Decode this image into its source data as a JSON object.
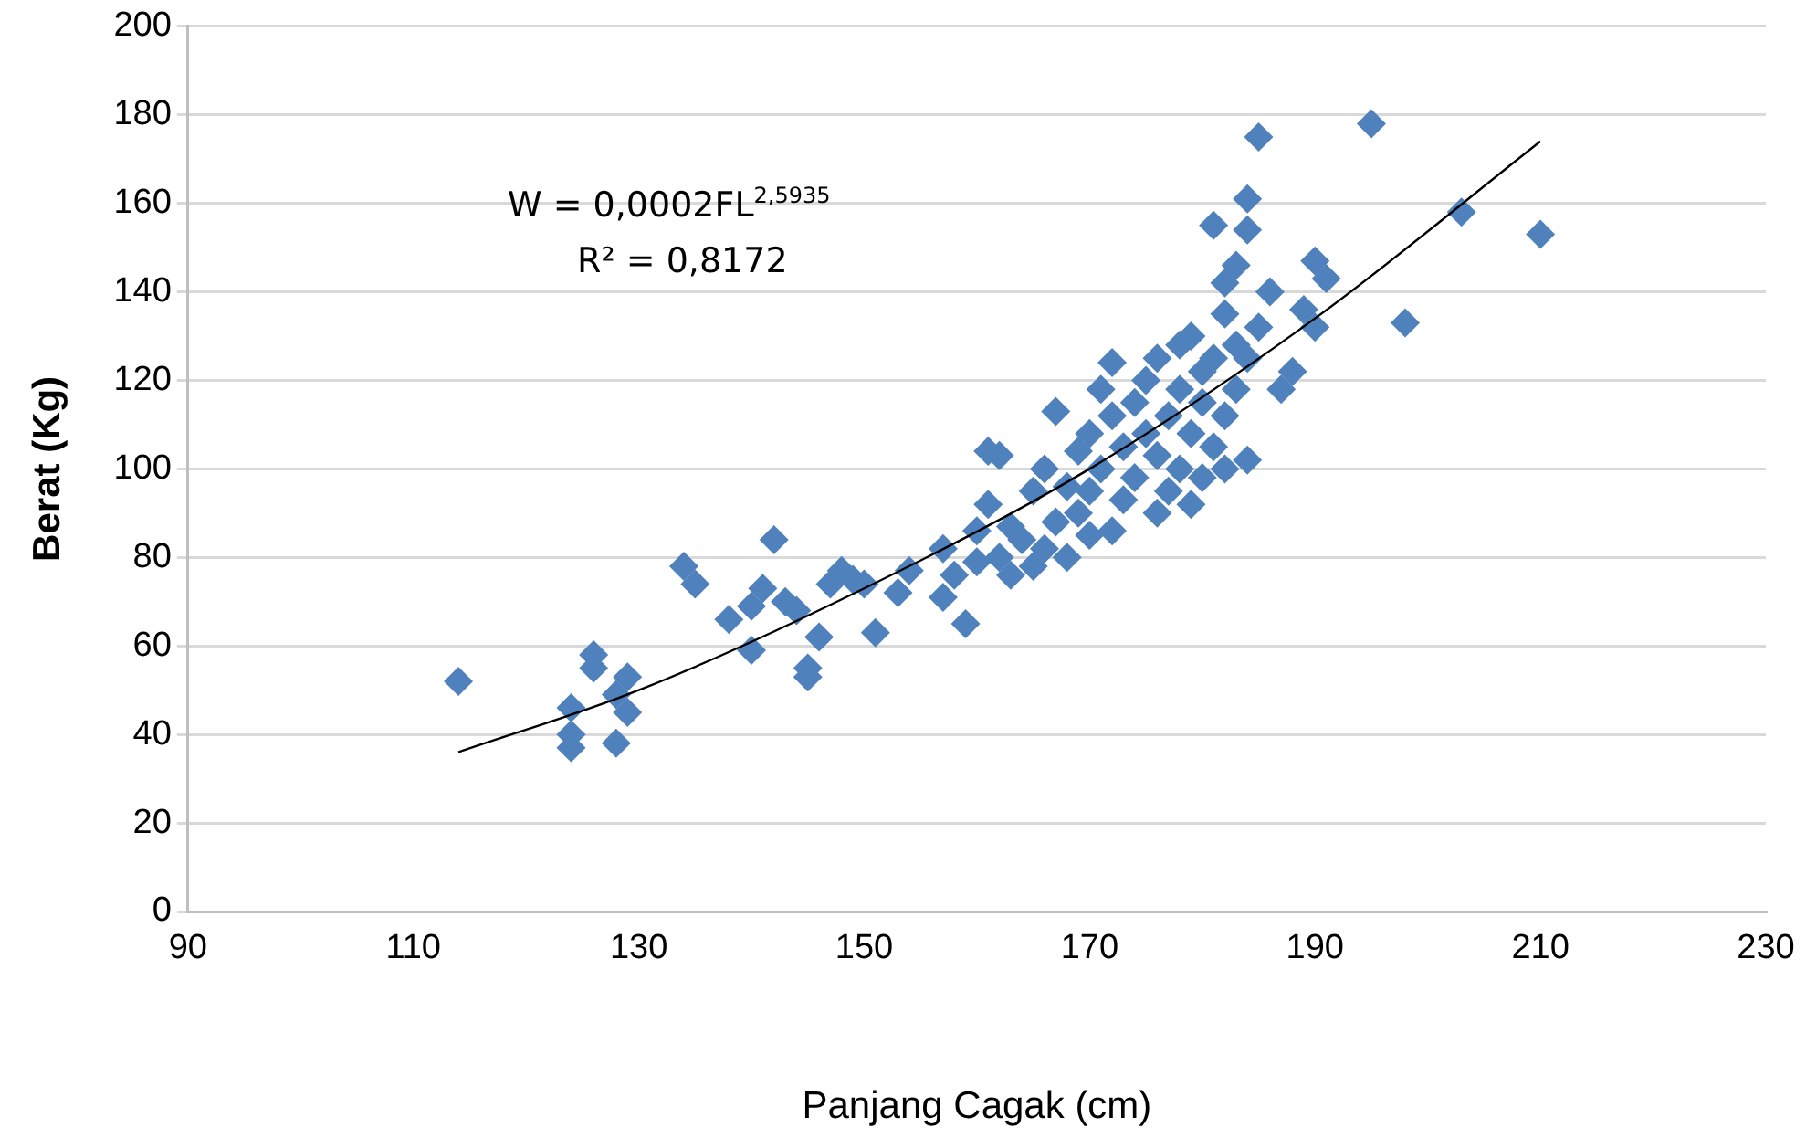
{
  "chart_data": {
    "type": "scatter",
    "xlabel": "Panjang Cagak (cm)",
    "ylabel": "Berat (Kg)",
    "annotations": [
      "W = 0,0002FL$^{2,5935}$",
      "R² = 0,8172"
    ],
    "xlim": [
      90,
      230
    ],
    "xticks": [
      90,
      110,
      130,
      150,
      170,
      190,
      210,
      230
    ],
    "ylim": [
      0,
      200
    ],
    "yticks": [
      0,
      20,
      40,
      60,
      80,
      100,
      120,
      140,
      160,
      180,
      200
    ],
    "grid": "y",
    "legend": false,
    "series": [
      {
        "type": "scatter",
        "color": "#4f81bd",
        "marker": "diamond",
        "x": [
          114,
          124,
          124,
          124,
          126,
          126,
          128,
          128,
          129,
          129,
          134,
          135,
          138,
          140,
          140,
          141,
          142,
          143,
          144,
          145,
          145,
          146,
          147,
          148,
          149,
          150,
          151,
          153,
          154,
          157,
          157,
          159,
          158,
          160,
          161,
          162,
          160,
          161,
          162,
          163,
          163,
          164,
          165,
          165,
          166,
          166,
          167,
          167,
          168,
          168,
          169,
          169,
          170,
          170,
          170,
          171,
          171,
          172,
          172,
          172,
          173,
          173,
          174,
          174,
          175,
          175,
          176,
          176,
          176,
          177,
          177,
          178,
          178,
          178,
          179,
          179,
          179,
          180,
          180,
          180,
          181,
          181,
          181,
          182,
          182,
          182,
          182,
          183,
          183,
          183,
          184,
          184,
          184,
          184,
          185,
          185,
          186,
          187,
          188,
          189,
          190,
          190,
          191,
          195,
          198,
          203,
          210
        ],
        "values": [
          52,
          37,
          40,
          46,
          55,
          58,
          38,
          49,
          53,
          45,
          78,
          74,
          66,
          59,
          69,
          73,
          84,
          70,
          68,
          53,
          55,
          62,
          74,
          77,
          75,
          74,
          63,
          72,
          77,
          71,
          82,
          65,
          76,
          79,
          104,
          103,
          86,
          92,
          80,
          76,
          87,
          84,
          78,
          95,
          82,
          100,
          113,
          88,
          80,
          96,
          90,
          104,
          85,
          95,
          108,
          100,
          118,
          86,
          112,
          124,
          93,
          105,
          98,
          115,
          108,
          120,
          90,
          103,
          125,
          95,
          112,
          100,
          118,
          128,
          92,
          108,
          130,
          98,
          115,
          122,
          105,
          125,
          155,
          100,
          112,
          135,
          142,
          118,
          128,
          146,
          102,
          125,
          154,
          161,
          175,
          132,
          140,
          118,
          122,
          136,
          132,
          147,
          143,
          178,
          133,
          158,
          153
        ]
      },
      {
        "type": "line",
        "color": "#000000",
        "marker": "none",
        "line_style": "solid",
        "x": [
          114,
          130,
          150,
          170,
          190,
          210
        ],
        "values": [
          36,
          50,
          73,
          100,
          134,
          174
        ]
      }
    ]
  }
}
